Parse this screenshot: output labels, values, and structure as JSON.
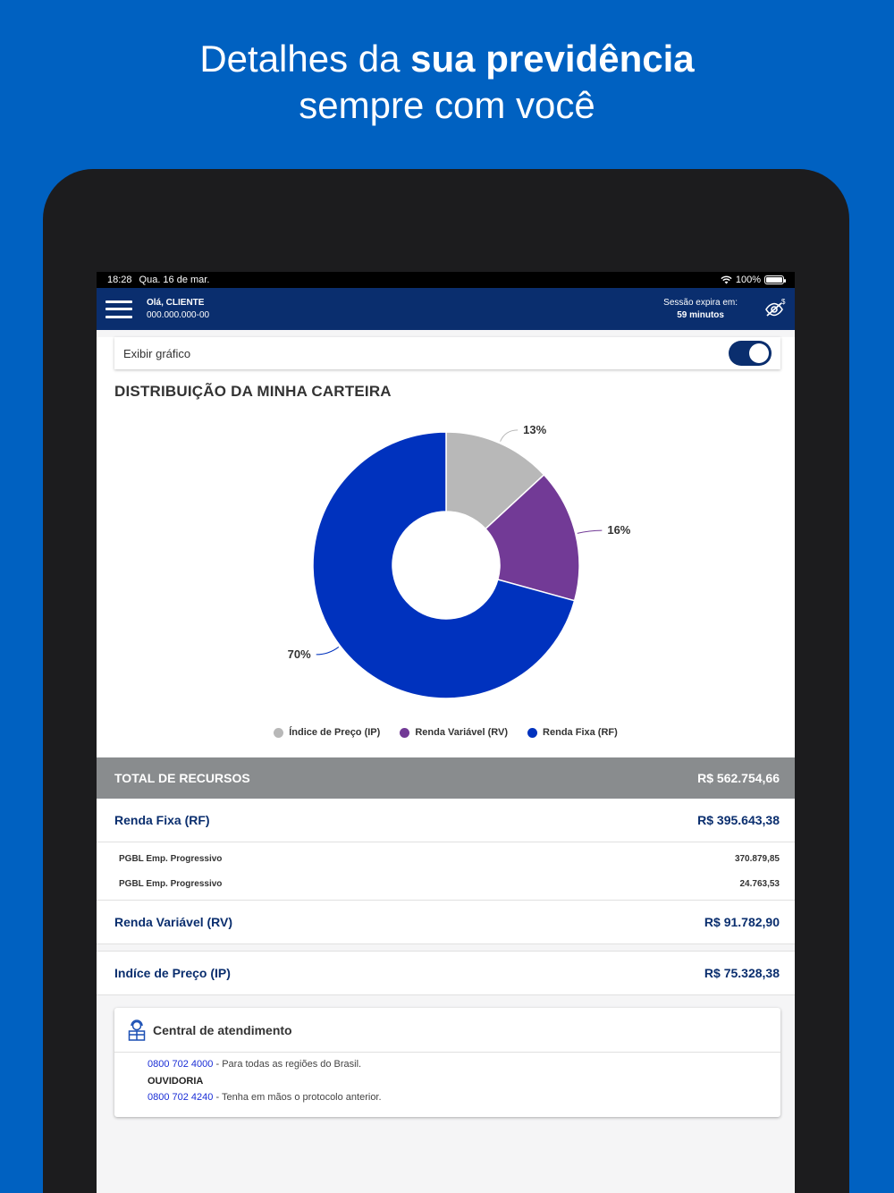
{
  "promo": {
    "line1_a": "Detalhes da ",
    "line1_b": "sua previdência",
    "line2": "sempre com você"
  },
  "statusbar": {
    "time": "18:28",
    "date": "Qua. 16 de mar.",
    "battery": "100%"
  },
  "appbar": {
    "greeting": "Olá, CLIENTE",
    "account": "000.000.000-00",
    "session_label": "Sessão expira em:",
    "session_value": "59 minutos",
    "eye_icon": "eye-slash-dollar-icon"
  },
  "toggle": {
    "label": "Exibir gráfico",
    "on": true
  },
  "chart_section": {
    "title": "DISTRIBUIÇÃO DA MINHA CARTEIRA"
  },
  "chart_data": {
    "type": "pie",
    "donut": true,
    "categories": [
      "Índice de Preço (IP)",
      "Renda Variável (RV)",
      "Renda Fixa (RF)"
    ],
    "values": [
      13,
      16,
      70
    ],
    "labels": [
      "13%",
      "16%",
      "70%"
    ],
    "colors": [
      "#b8b8b8",
      "#723a96",
      "#0032be"
    ],
    "legend_position": "bottom"
  },
  "total": {
    "label": "TOTAL DE RECURSOS",
    "value": "R$ 562.754,66"
  },
  "rf": {
    "label": "Renda Fixa (RF)",
    "value": "R$ 395.643,38",
    "items": [
      {
        "name": "PGBL Emp. Progressivo",
        "value": "370.879,85"
      },
      {
        "name": "PGBL Emp. Progressivo",
        "value": "24.763,53"
      }
    ]
  },
  "rv": {
    "label": "Renda Variável (RV)",
    "value": "R$ 91.782,90"
  },
  "ip": {
    "label": "Indíce de Preço (IP)",
    "value": "R$ 75.328,38"
  },
  "support": {
    "title": "Central de atendimento",
    "phone1": "0800 702 4000",
    "phone1_desc": " - Para todas as regiões do Brasil.",
    "ouvidoria": "OUVIDORIA",
    "phone2": "0800 702 4240",
    "phone2_desc": " - Tenha em mãos o protocolo anterior."
  }
}
